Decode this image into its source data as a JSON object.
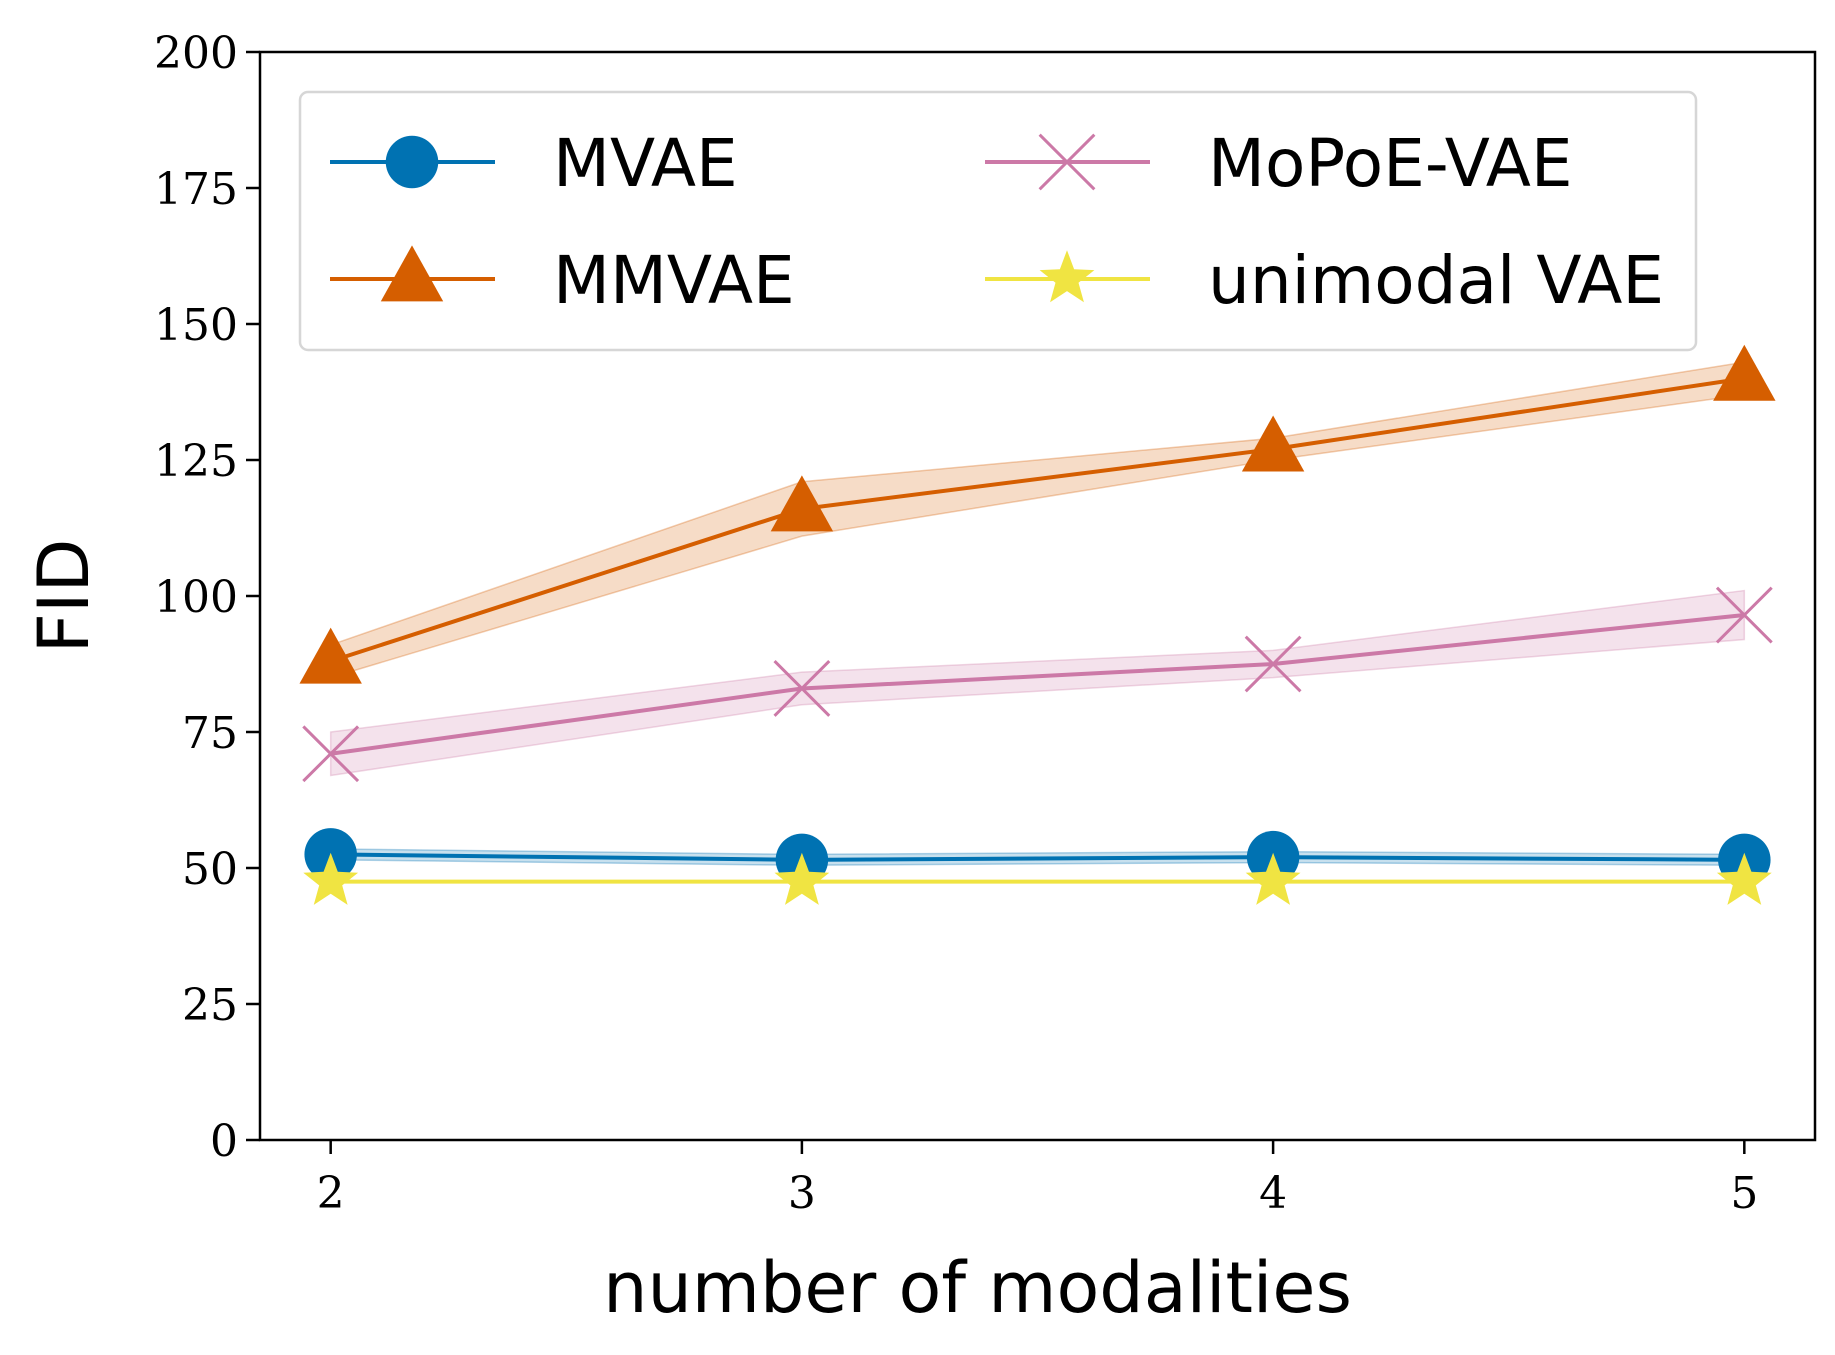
{
  "chart_data": {
    "type": "line",
    "title": "",
    "xlabel": "number of modalities",
    "ylabel": "FID",
    "x": [
      2,
      3,
      4,
      5
    ],
    "xticks": [
      2,
      3,
      4,
      5
    ],
    "yticks": [
      0,
      25,
      50,
      75,
      100,
      125,
      150,
      175,
      200
    ],
    "xlim": [
      1.85,
      5.15
    ],
    "ylim": [
      0,
      200
    ],
    "grid": false,
    "legend_position": "top",
    "series": [
      {
        "name": "MVAE",
        "marker": "circle",
        "color": "#0072b2",
        "values": [
          52.5,
          51.5,
          52.0,
          51.5
        ],
        "lower": [
          51.5,
          50.5,
          51.0,
          50.5
        ],
        "upper": [
          53.5,
          52.5,
          53.0,
          52.5
        ]
      },
      {
        "name": "MMVAE",
        "marker": "triangle",
        "color": "#d55e00",
        "values": [
          88,
          116,
          127,
          140
        ],
        "lower": [
          85,
          111,
          125,
          137
        ],
        "upper": [
          91,
          121,
          129,
          143
        ]
      },
      {
        "name": "MoPoE-VAE",
        "marker": "x",
        "color": "#cc79a7",
        "values": [
          71,
          83,
          87.5,
          96.5
        ],
        "lower": [
          67,
          80,
          85,
          92
        ],
        "upper": [
          75,
          86,
          90,
          101
        ]
      },
      {
        "name": "unimodal VAE",
        "marker": "star",
        "color": "#f0e442",
        "values": [
          47.5,
          47.5,
          47.5,
          47.5
        ],
        "lower": [
          47.5,
          47.5,
          47.5,
          47.5
        ],
        "upper": [
          47.5,
          47.5,
          47.5,
          47.5
        ]
      }
    ]
  }
}
